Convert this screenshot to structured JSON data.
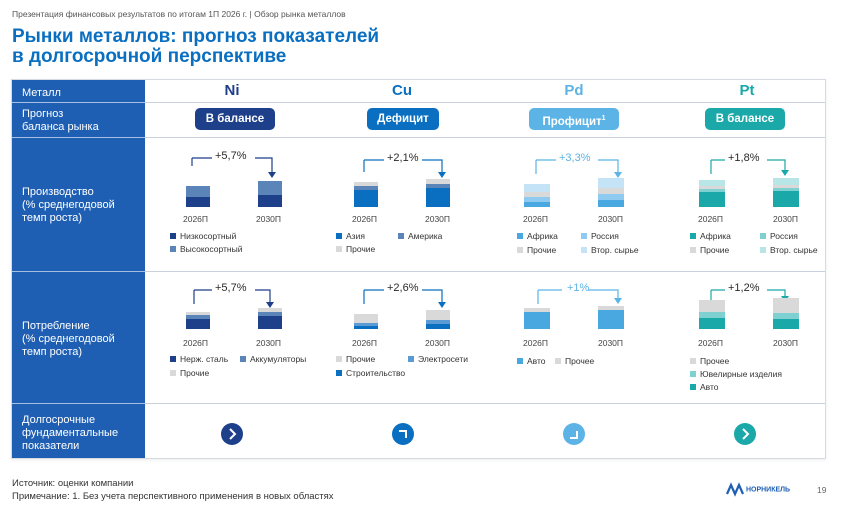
{
  "topline": "Презентация финансовых результатов по итогам 1П 2026 г. | Обзор рынка металлов",
  "title_line1": "Рынки металлов: прогноз показателей",
  "title_line2": "в долгосрочной перспективе",
  "rows": {
    "metal": "Металл",
    "balance": [
      "Прогноз",
      "баланса рынка"
    ],
    "production": [
      "Производство",
      "(% среднегодовой",
      "темп роста)"
    ],
    "consumption": [
      "Потребление",
      "(% среднегодовой",
      "темп роста)"
    ],
    "fundamentals": [
      "Долгосрочные",
      "фундаментальные",
      "показатели"
    ]
  },
  "metals": [
    {
      "name": "Ni",
      "color": "#1f5fb3",
      "balance": "В балансе",
      "badge_color": "#1e3f8a",
      "badge_sup": "",
      "production": {
        "growth": "+5,7%",
        "years": [
          "2026П",
          "2030П"
        ],
        "legend": [
          [
            "Низкосортный",
            "#1e3f8a"
          ],
          [
            "Высокосортный",
            "#5b84b8"
          ]
        ]
      },
      "consumption": {
        "growth": "+5,7%",
        "years": [
          "2026П",
          "2030П"
        ],
        "legend": [
          [
            "Нерж. сталь",
            "#1e3f8a"
          ],
          [
            "Аккумуляторы",
            "#5b84b8"
          ],
          [
            "Прочие",
            "#d9d9d9"
          ]
        ]
      },
      "arrow_color": "#1e3f8a",
      "arrow_glyph": "›"
    },
    {
      "name": "Cu",
      "color": "#0a6fc0",
      "balance": "Дефицит",
      "badge_color": "#0a6fc0",
      "badge_sup": "",
      "production": {
        "growth": "+2,1%",
        "years": [
          "2026П",
          "2030П"
        ],
        "legend": [
          [
            "Азия",
            "#0a6fc0"
          ],
          [
            "Америка",
            "#5b84b8"
          ],
          [
            "Прочие",
            "#d9d9d9"
          ]
        ]
      },
      "consumption": {
        "growth": "+2,6%",
        "years": [
          "2026П",
          "2030П"
        ],
        "legend": [
          [
            "Прочие",
            "#d9d9d9"
          ],
          [
            "Электросети",
            "#5b9bd5"
          ],
          [
            "Строительство",
            "#0a6fc0"
          ]
        ]
      },
      "arrow_color": "#0a6fc0",
      "arrow_glyph": "⌝"
    },
    {
      "name": "Pd",
      "color": "#5bb3e6",
      "balance": "Профицит",
      "badge_color": "#5bb3e6",
      "badge_sup": "1",
      "production": {
        "growth": "+3,3%",
        "years": [
          "2026П",
          "2030П"
        ],
        "legend": [
          [
            "Африка",
            "#4aa8e0"
          ],
          [
            "Россия",
            "#8fcaf0"
          ],
          [
            "Прочие",
            "#d9d9d9"
          ],
          [
            "Втор. сырье",
            "#c5e3f7"
          ]
        ]
      },
      "consumption": {
        "growth": "+1%",
        "years": [
          "2026П",
          "2030П"
        ],
        "legend": [
          [
            "Авто",
            "#4aa8e0"
          ],
          [
            "Прочее",
            "#d9d9d9"
          ]
        ]
      },
      "arrow_color": "#5bb3e6",
      "arrow_glyph": "⌟"
    },
    {
      "name": "Pt",
      "color": "#1aa8a8",
      "balance": "В балансе",
      "badge_color": "#1aa8a8",
      "badge_sup": "",
      "production": {
        "growth": "+1,8%",
        "years": [
          "2026П",
          "2030П"
        ],
        "legend": [
          [
            "Африка",
            "#1aa8a8"
          ],
          [
            "Россия",
            "#7fd0d0"
          ],
          [
            "Прочие",
            "#d9d9d9"
          ],
          [
            "Втор. сырье",
            "#b8e6e6"
          ]
        ]
      },
      "consumption": {
        "growth": "+1,2%",
        "years": [
          "2026П",
          "2030П"
        ],
        "legend": [
          [
            "Прочее",
            "#d9d9d9"
          ],
          [
            "Ювелирные изделия",
            "#7fd0d0"
          ],
          [
            "Авто",
            "#1aa8a8"
          ]
        ]
      },
      "arrow_color": "#1aa8a8",
      "arrow_glyph": "›"
    }
  ],
  "footer_source": "Источник: оценки компании",
  "footer_note": "Примечание: 1. Без учета перспективного применения в новых областях",
  "logo": "НОРНИКЕЛЬ",
  "page_number": "19"
}
